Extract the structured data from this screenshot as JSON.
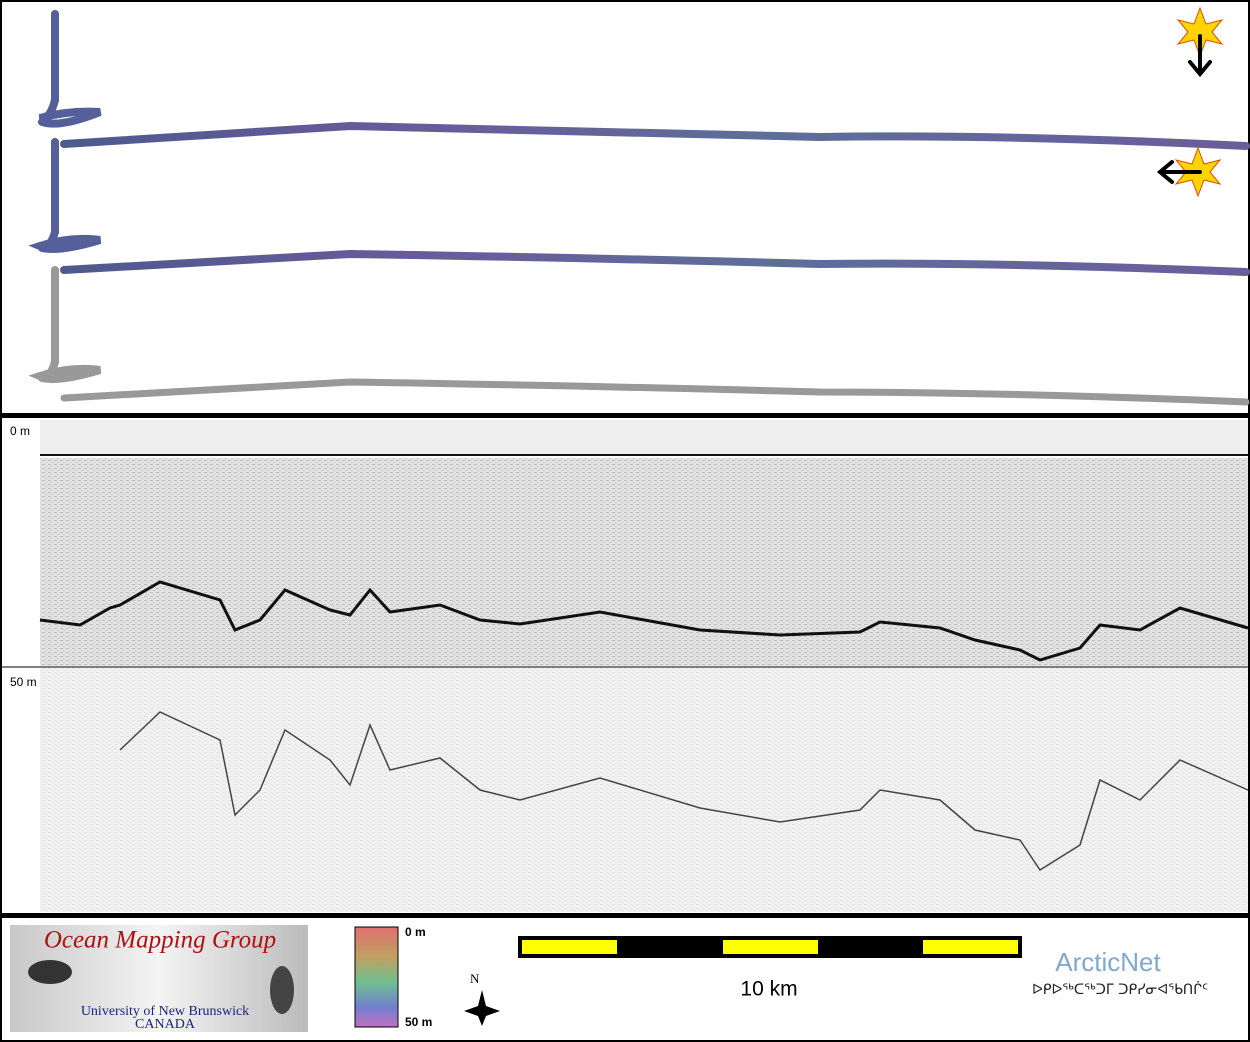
{
  "echogram": {
    "depth_top": "0 m",
    "depth_mid": "50 m"
  },
  "footer": {
    "logo_title": "Ocean Mapping Group",
    "logo_university": "University of New Brunswick",
    "logo_country": "CANADA",
    "colorbar_top": "0 m",
    "colorbar_bottom": "50 m",
    "north": "N",
    "scale": "10 km",
    "partner": "ArcticNet",
    "partner_syllabics": "ᐅᑭᐅᖅᑕᖅᑐᒥ ᑐᑭᓯᓂᐊᖃᑎᒌᑦ"
  }
}
